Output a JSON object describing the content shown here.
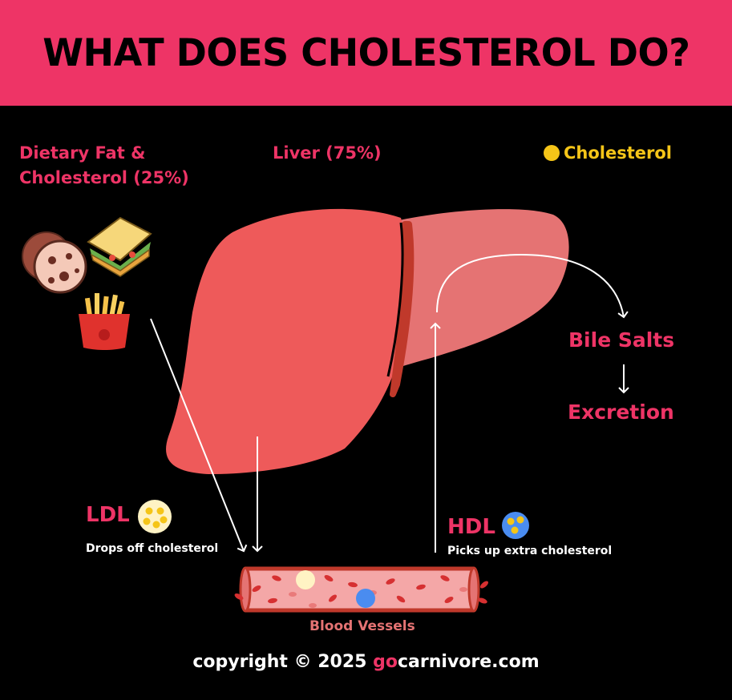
{
  "title": "WHAT DOES CHOLESTEROL DO?",
  "labels": {
    "dietary_line1": "Dietary Fat &",
    "dietary_line2": "Cholesterol (25%)",
    "liver": "Liver (75%)",
    "cholesterol_legend": "Cholesterol",
    "bile_salts": "Bile Salts",
    "excretion": "Excretion",
    "ldl": "LDL",
    "ldl_desc": "Drops off cholesterol",
    "hdl": "HDL",
    "hdl_desc": "Picks up extra cholesterol",
    "blood_vessels": "Blood Vessels"
  },
  "footer": {
    "prefix": "copyright © 2025 ",
    "brand_go": "go",
    "brand_rest": "carnivore.com"
  },
  "colors": {
    "banner": "#ee3466",
    "accent_pink": "#ee3466",
    "cholesterol_yellow": "#f5c518",
    "liver_left": "#ee5a5a",
    "liver_right": "#e57373",
    "ligament": "#c0392b",
    "vessel": "#f4a7a7",
    "hdl_blue": "#4a8cf0"
  },
  "icons": [
    "cookie-icon",
    "sandwich-icon",
    "fries-icon",
    "ldl-particle-icon",
    "hdl-particle-icon",
    "cholesterol-dot-icon"
  ]
}
